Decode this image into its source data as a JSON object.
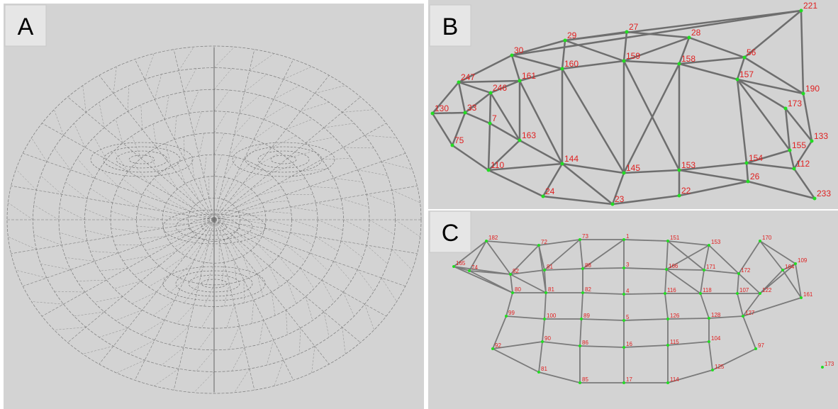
{
  "panels": [
    {
      "label": "A"
    },
    {
      "label": "B",
      "vertices": [
        "221",
        "29",
        "27",
        "28",
        "30",
        "159",
        "158",
        "56",
        "160",
        "247",
        "161",
        "157",
        "246",
        "190",
        "130",
        "33",
        "173",
        "7",
        "163",
        "75",
        "133",
        "155",
        "110",
        "144",
        "145",
        "153",
        "154",
        "112",
        "26",
        "24",
        "23",
        "22",
        "233"
      ]
    },
    {
      "label": "C",
      "vertices": [
        "182",
        "72",
        "73",
        "1",
        "151",
        "153",
        "170",
        "165",
        "74",
        "82",
        "81",
        "88",
        "3",
        "166",
        "171",
        "172",
        "164",
        "109",
        "80",
        "81",
        "82",
        "4",
        "116",
        "118",
        "107",
        "122",
        "161",
        "99",
        "100",
        "89",
        "5",
        "126",
        "128",
        "127",
        "92",
        "90",
        "86",
        "16",
        "115",
        "104",
        "97",
        "81",
        "85",
        "17",
        "114",
        "125",
        "173"
      ]
    }
  ]
}
